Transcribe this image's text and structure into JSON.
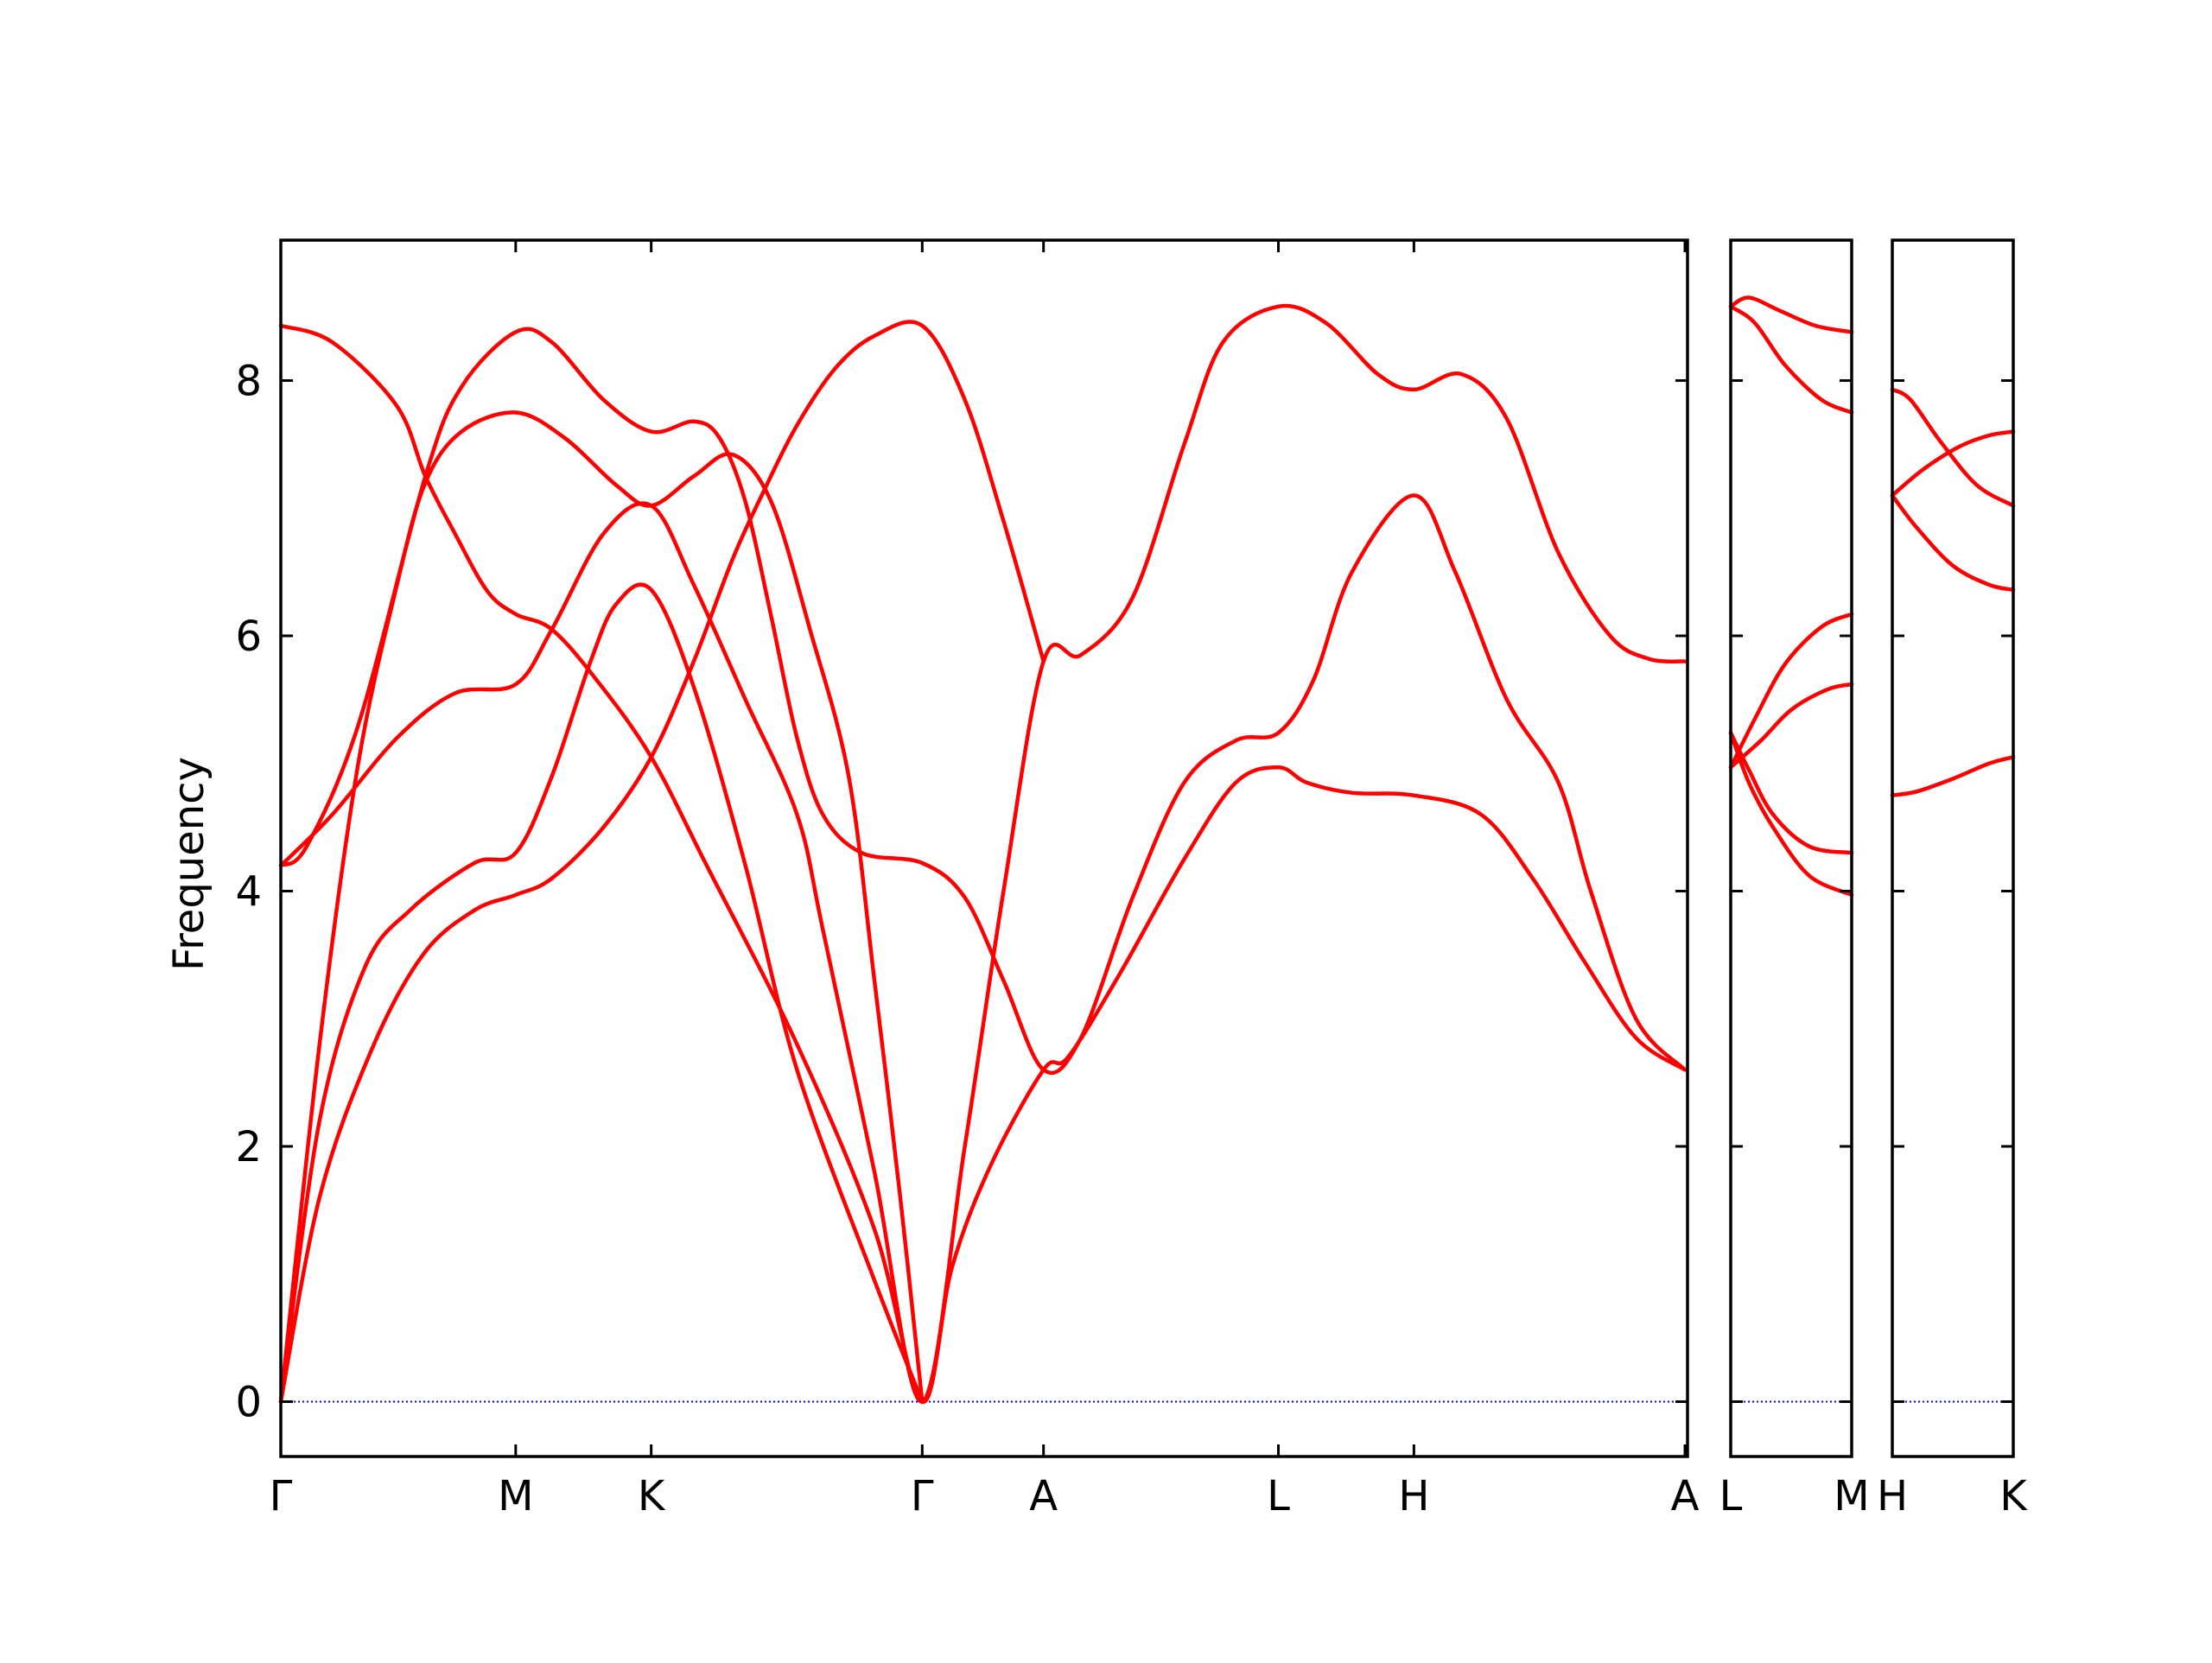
{
  "chart_data": {
    "type": "line",
    "ylabel": "Frequency",
    "ylim": [
      -0.43,
      9.1
    ],
    "yticks": [
      0,
      2,
      4,
      6,
      8
    ],
    "grid": false,
    "legend": "none",
    "colors": {
      "bands": "#ff0000",
      "zero_line": "#0000ff",
      "axes": "#000000"
    },
    "panels": [
      {
        "id": "panel-1",
        "xlim": [
          0,
          10.9
        ],
        "xticks": [
          {
            "x": 0.0,
            "label": "Γ"
          },
          {
            "x": 1.82,
            "label": "M"
          },
          {
            "x": 2.87,
            "label": "K"
          },
          {
            "x": 4.97,
            "label": "Γ"
          },
          {
            "x": 5.91,
            "label": "A"
          },
          {
            "x": 7.73,
            "label": "L"
          },
          {
            "x": 8.78,
            "label": "H"
          },
          {
            "x": 10.88,
            "label": "A"
          }
        ],
        "series": [
          {
            "values": [
              [
                0,
                8.43
              ],
              [
                0.4,
                8.3
              ],
              [
                0.9,
                7.8
              ],
              [
                1.12,
                7.25
              ],
              [
                1.35,
                6.8
              ],
              [
                1.6,
                6.35
              ],
              [
                1.82,
                6.17
              ],
              [
                2.1,
                6.05
              ],
              [
                2.45,
                5.65
              ],
              [
                2.87,
                5.05
              ],
              [
                3.3,
                4.2
              ],
              [
                4.0,
                2.8
              ],
              [
                4.6,
                1.35
              ],
              [
                4.97,
                0.0
              ],
              [
                5.2,
                1.05
              ],
              [
                5.5,
                1.85
              ],
              [
                5.91,
                2.6
              ],
              [
                6.1,
                2.7
              ],
              [
                6.5,
                3.35
              ],
              [
                7.0,
                4.25
              ],
              [
                7.4,
                4.85
              ],
              [
                7.73,
                4.97
              ],
              [
                7.95,
                4.85
              ],
              [
                8.3,
                4.77
              ],
              [
                8.78,
                4.75
              ],
              [
                9.3,
                4.6
              ],
              [
                9.7,
                4.1
              ],
              [
                10.1,
                3.45
              ],
              [
                10.5,
                2.85
              ],
              [
                10.88,
                2.6
              ]
            ]
          },
          {
            "values": [
              [
                0,
                4.2
              ],
              [
                0.2,
                4.35
              ],
              [
                0.6,
                5.3
              ],
              [
                1.12,
                7.25
              ],
              [
                1.4,
                7.95
              ],
              [
                1.82,
                8.38
              ],
              [
                2.1,
                8.3
              ],
              [
                2.5,
                7.85
              ],
              [
                2.87,
                7.6
              ],
              [
                3.2,
                7.68
              ],
              [
                3.4,
                7.55
              ],
              [
                3.6,
                7.05
              ],
              [
                3.8,
                6.15
              ],
              [
                4.0,
                5.2
              ],
              [
                4.2,
                4.6
              ],
              [
                4.5,
                4.3
              ],
              [
                4.97,
                4.22
              ],
              [
                5.3,
                3.95
              ],
              [
                5.6,
                3.3
              ],
              [
                5.91,
                2.6
              ],
              [
                6.2,
                2.85
              ],
              [
                6.6,
                3.95
              ],
              [
                7.0,
                4.85
              ],
              [
                7.4,
                5.18
              ],
              [
                7.73,
                5.24
              ],
              [
                8.0,
                5.65
              ],
              [
                8.3,
                6.5
              ],
              [
                8.78,
                7.1
              ],
              [
                9.1,
                6.5
              ],
              [
                9.5,
                5.5
              ],
              [
                9.9,
                4.85
              ],
              [
                10.15,
                4.0
              ],
              [
                10.5,
                3.0
              ],
              [
                10.88,
                2.6
              ]
            ]
          },
          {
            "values": [
              [
                0,
                4.2
              ],
              [
                0.4,
                4.6
              ],
              [
                0.9,
                5.2
              ],
              [
                1.35,
                5.55
              ],
              [
                1.82,
                5.62
              ],
              [
                2.1,
                6.05
              ],
              [
                2.5,
                6.8
              ],
              [
                2.87,
                7.02
              ],
              [
                3.2,
                6.4
              ],
              [
                3.6,
                5.5
              ],
              [
                4.0,
                4.6
              ],
              [
                4.2,
                3.7
              ],
              [
                4.6,
                1.8
              ],
              [
                4.97,
                0.0
              ],
              [
                5.3,
                2.0
              ],
              [
                5.6,
                4.0
              ],
              [
                5.91,
                5.8
              ],
              [
                6.2,
                5.85
              ],
              [
                6.6,
                6.3
              ],
              [
                7.0,
                7.5
              ],
              [
                7.3,
                8.3
              ],
              [
                7.73,
                8.58
              ],
              [
                8.1,
                8.45
              ],
              [
                8.5,
                8.05
              ],
              [
                8.78,
                7.93
              ],
              [
                9.15,
                8.05
              ],
              [
                9.5,
                7.7
              ],
              [
                9.9,
                6.65
              ],
              [
                10.3,
                6.0
              ],
              [
                10.6,
                5.82
              ],
              [
                10.88,
                5.8
              ]
            ]
          },
          {
            "values": [
              [
                0,
                0.0
              ],
              [
                0.3,
                1.6
              ],
              [
                0.7,
                2.75
              ],
              [
                1.1,
                3.5
              ],
              [
                1.5,
                3.85
              ],
              [
                1.82,
                3.97
              ],
              [
                2.1,
                4.1
              ],
              [
                2.5,
                4.5
              ],
              [
                2.87,
                5.05
              ],
              [
                3.2,
                5.8
              ],
              [
                3.5,
                6.6
              ],
              [
                3.75,
                7.15
              ],
              [
                4.0,
                7.65
              ],
              [
                4.3,
                8.1
              ],
              [
                4.6,
                8.35
              ],
              [
                4.97,
                8.43
              ],
              [
                5.3,
                7.85
              ],
              [
                5.6,
                6.9
              ],
              [
                5.91,
                5.8
              ]
            ]
          },
          {
            "values": [
              [
                0,
                0.0
              ],
              [
                0.3,
                2.2
              ],
              [
                0.65,
                3.4
              ],
              [
                1.0,
                3.85
              ],
              [
                1.5,
                4.22
              ],
              [
                1.82,
                4.3
              ],
              [
                2.1,
                4.9
              ],
              [
                2.4,
                5.8
              ],
              [
                2.6,
                6.25
              ],
              [
                2.87,
                6.36
              ],
              [
                3.2,
                5.6
              ],
              [
                3.6,
                4.2
              ],
              [
                4.0,
                2.6
              ],
              [
                4.6,
                0.95
              ],
              [
                4.97,
                0.0
              ]
            ]
          },
          {
            "values": [
              [
                0,
                0.0
              ],
              [
                0.3,
                2.8
              ],
              [
                0.6,
                5.0
              ],
              [
                0.9,
                6.4
              ],
              [
                1.12,
                7.2
              ],
              [
                1.4,
                7.6
              ],
              [
                1.82,
                7.75
              ],
              [
                2.2,
                7.55
              ],
              [
                2.6,
                7.18
              ],
              [
                2.87,
                7.02
              ],
              [
                3.2,
                7.25
              ],
              [
                3.5,
                7.42
              ],
              [
                3.8,
                7.05
              ],
              [
                4.1,
                6.05
              ],
              [
                4.4,
                4.9
              ],
              [
                4.6,
                3.3
              ],
              [
                4.8,
                1.6
              ],
              [
                4.97,
                0.0
              ]
            ]
          }
        ]
      },
      {
        "id": "panel-2",
        "xlim": [
          0,
          1.0
        ],
        "xticks": [
          {
            "x": 0.0,
            "label": "L"
          },
          {
            "x": 1.0,
            "label": "M"
          }
        ],
        "series": [
          {
            "values": [
              [
                0,
                8.58
              ],
              [
                0.15,
                8.65
              ],
              [
                0.4,
                8.55
              ],
              [
                0.7,
                8.43
              ],
              [
                1.0,
                8.38
              ]
            ]
          },
          {
            "values": [
              [
                0,
                8.58
              ],
              [
                0.2,
                8.45
              ],
              [
                0.45,
                8.12
              ],
              [
                0.75,
                7.85
              ],
              [
                1.0,
                7.75
              ]
            ]
          },
          {
            "values": [
              [
                0,
                4.97
              ],
              [
                0.2,
                5.35
              ],
              [
                0.45,
                5.78
              ],
              [
                0.75,
                6.07
              ],
              [
                1.0,
                6.17
              ]
            ]
          },
          {
            "values": [
              [
                0,
                4.97
              ],
              [
                0.25,
                5.18
              ],
              [
                0.5,
                5.42
              ],
              [
                0.8,
                5.58
              ],
              [
                1.0,
                5.62
              ]
            ]
          },
          {
            "values": [
              [
                0,
                5.24
              ],
              [
                0.15,
                4.95
              ],
              [
                0.35,
                4.6
              ],
              [
                0.65,
                4.35
              ],
              [
                1.0,
                4.3
              ]
            ]
          },
          {
            "values": [
              [
                0,
                5.24
              ],
              [
                0.15,
                4.85
              ],
              [
                0.35,
                4.5
              ],
              [
                0.65,
                4.12
              ],
              [
                1.0,
                3.97
              ]
            ]
          }
        ]
      },
      {
        "id": "panel-3",
        "xlim": [
          0,
          1.0
        ],
        "xticks": [
          {
            "x": 0.0,
            "label": "H"
          },
          {
            "x": 1.0,
            "label": "K"
          }
        ],
        "series": [
          {
            "values": [
              [
                0,
                7.93
              ],
              [
                0.15,
                7.85
              ],
              [
                0.4,
                7.52
              ],
              [
                0.7,
                7.18
              ],
              [
                1.0,
                7.02
              ]
            ]
          },
          {
            "values": [
              [
                0,
                7.1
              ],
              [
                0.25,
                7.3
              ],
              [
                0.55,
                7.48
              ],
              [
                0.8,
                7.57
              ],
              [
                1.0,
                7.6
              ]
            ]
          },
          {
            "values": [
              [
                0,
                7.1
              ],
              [
                0.2,
                6.85
              ],
              [
                0.5,
                6.55
              ],
              [
                0.8,
                6.4
              ],
              [
                1.0,
                6.36
              ]
            ]
          },
          {
            "values": [
              [
                0,
                4.75
              ],
              [
                0.2,
                4.78
              ],
              [
                0.5,
                4.88
              ],
              [
                0.8,
                5.0
              ],
              [
                1.0,
                5.05
              ]
            ]
          }
        ]
      }
    ]
  }
}
